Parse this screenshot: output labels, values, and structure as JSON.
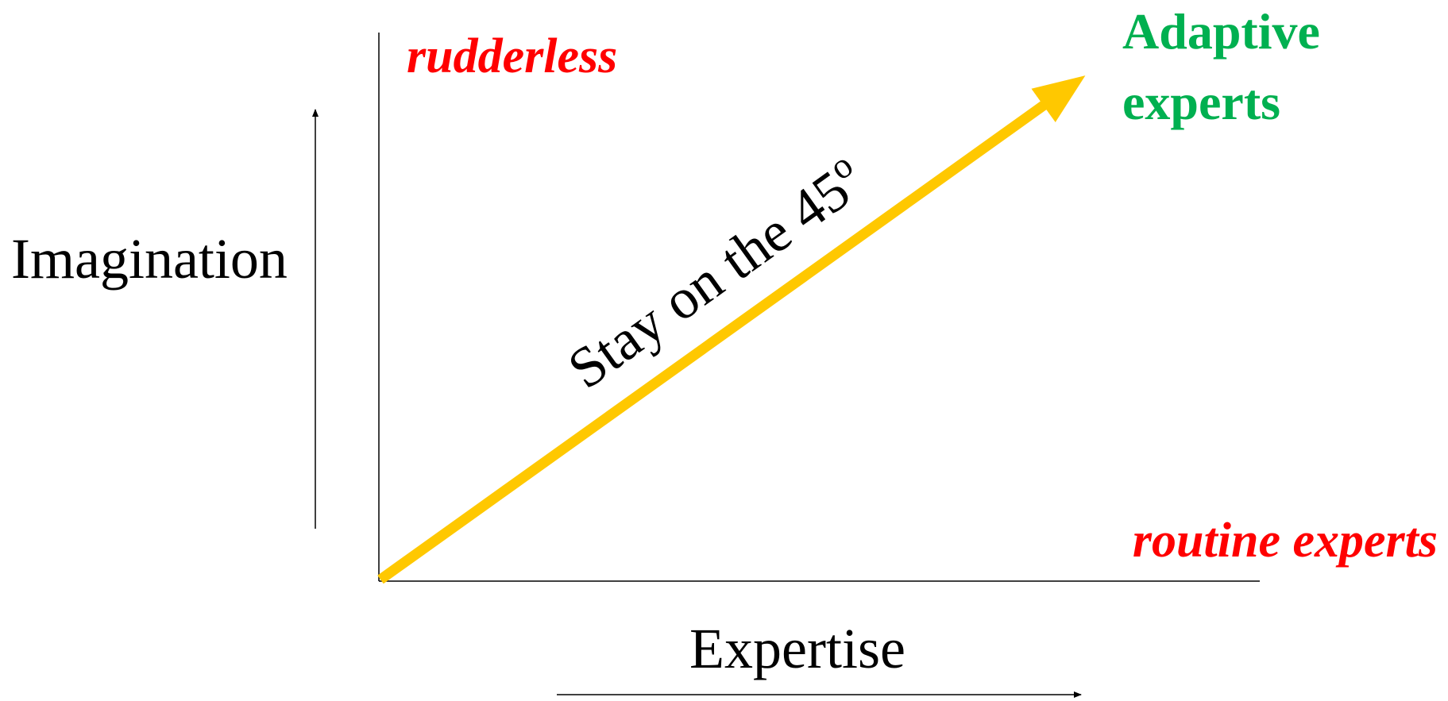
{
  "labels": {
    "top_left": "rudderless",
    "top_right": [
      "Adaptive",
      "experts"
    ],
    "bottom_right": "routine experts",
    "y_axis": "Imagination",
    "x_axis": "Expertise",
    "diagonal": {
      "text": "Stay on the 45",
      "superscript": "o"
    }
  }
}
